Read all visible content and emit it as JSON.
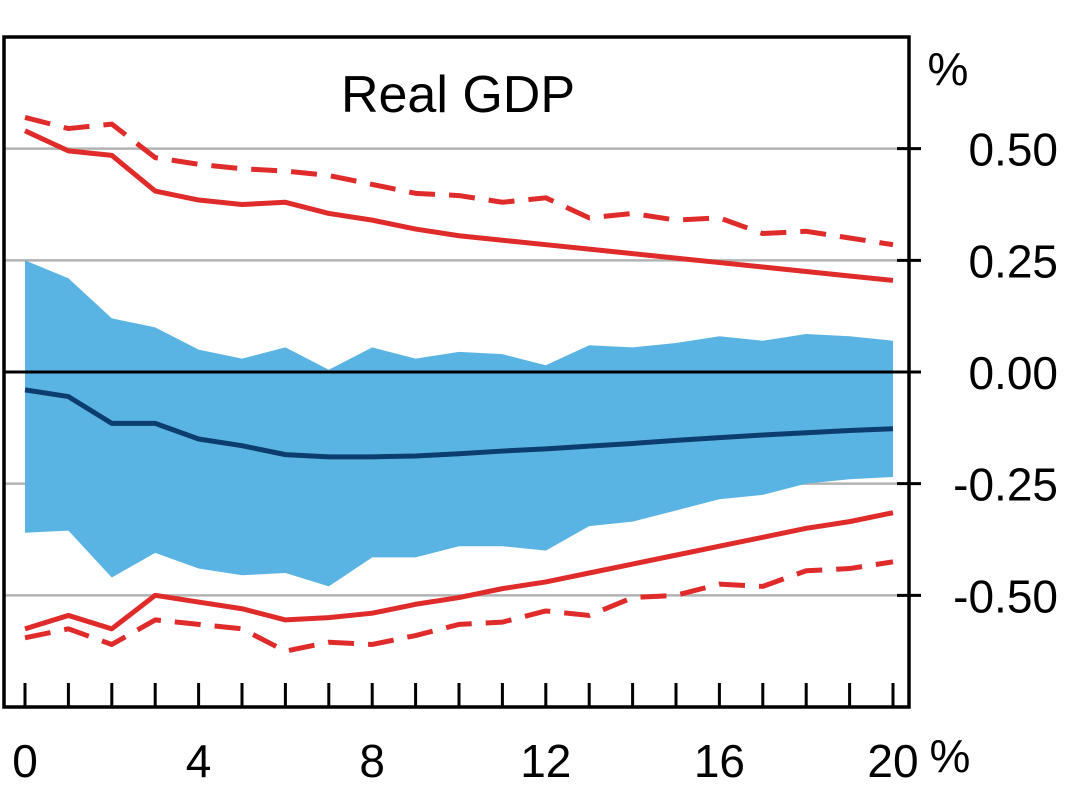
{
  "chart_data": {
    "type": "line",
    "title": "Real GDP",
    "y_unit_label": "%",
    "x_unit_label": "%",
    "xlim": [
      0,
      20
    ],
    "ylim": [
      -0.75,
      0.75
    ],
    "x_ticks": [
      0,
      4,
      8,
      12,
      16,
      20
    ],
    "x_tick_labels": [
      "0",
      "4",
      "8",
      "12",
      "16",
      "20"
    ],
    "y_ticks": [
      0.5,
      0.25,
      0,
      -0.25,
      -0.5
    ],
    "y_tick_labels": [
      "0.50",
      "0.25",
      "0.00",
      "-0.25",
      "-0.50"
    ],
    "grid": true,
    "x": [
      0,
      1,
      2,
      3,
      4,
      5,
      6,
      7,
      8,
      9,
      10,
      11,
      12,
      13,
      14,
      15,
      16,
      17,
      18,
      19,
      20
    ],
    "band": {
      "upper": [
        0.25,
        0.21,
        0.12,
        0.1,
        0.05,
        0.03,
        0.055,
        0.005,
        0.055,
        0.03,
        0.045,
        0.04,
        0.015,
        0.06,
        0.055,
        0.065,
        0.08,
        0.07,
        0.085,
        0.08,
        0.07
      ],
      "lower": [
        -0.36,
        -0.355,
        -0.46,
        -0.405,
        -0.44,
        -0.455,
        -0.45,
        -0.48,
        -0.415,
        -0.415,
        -0.39,
        -0.39,
        -0.4,
        -0.345,
        -0.335,
        -0.31,
        -0.285,
        -0.275,
        -0.25,
        -0.24,
        -0.235
      ]
    },
    "series": [
      {
        "role": "median",
        "values": [
          -0.04,
          -0.055,
          -0.115,
          -0.115,
          -0.15,
          -0.165,
          -0.185,
          -0.19,
          -0.19,
          -0.188,
          -0.183,
          -0.177,
          -0.172,
          -0.166,
          -0.16,
          -0.153,
          -0.147,
          -0.141,
          -0.136,
          -0.131,
          -0.127
        ]
      },
      {
        "role": "upper-solid",
        "values": [
          0.54,
          0.495,
          0.485,
          0.405,
          0.385,
          0.375,
          0.38,
          0.355,
          0.34,
          0.32,
          0.305,
          0.295,
          0.285,
          0.275,
          0.265,
          0.255,
          0.245,
          0.235,
          0.225,
          0.215,
          0.205
        ]
      },
      {
        "role": "upper-dashed",
        "values": [
          0.57,
          0.545,
          0.555,
          0.48,
          0.465,
          0.455,
          0.45,
          0.44,
          0.42,
          0.4,
          0.395,
          0.38,
          0.39,
          0.345,
          0.355,
          0.34,
          0.345,
          0.31,
          0.315,
          0.3,
          0.285
        ]
      },
      {
        "role": "lower-solid",
        "values": [
          -0.575,
          -0.545,
          -0.575,
          -0.5,
          -0.515,
          -0.53,
          -0.555,
          -0.55,
          -0.54,
          -0.52,
          -0.505,
          -0.485,
          -0.47,
          -0.45,
          -0.43,
          -0.41,
          -0.39,
          -0.37,
          -0.35,
          -0.335,
          -0.315
        ]
      },
      {
        "role": "lower-dashed",
        "values": [
          -0.595,
          -0.575,
          -0.61,
          -0.555,
          -0.565,
          -0.575,
          -0.625,
          -0.605,
          -0.61,
          -0.59,
          -0.565,
          -0.56,
          -0.535,
          -0.545,
          -0.505,
          -0.5,
          -0.475,
          -0.48,
          -0.445,
          -0.44,
          -0.425
        ]
      }
    ],
    "colors": {
      "band": "#5ab4e3",
      "median": "#0b3e6f",
      "bounds": "#e02b2b",
      "grid": "#b3b3b3",
      "axis": "#000000"
    }
  }
}
